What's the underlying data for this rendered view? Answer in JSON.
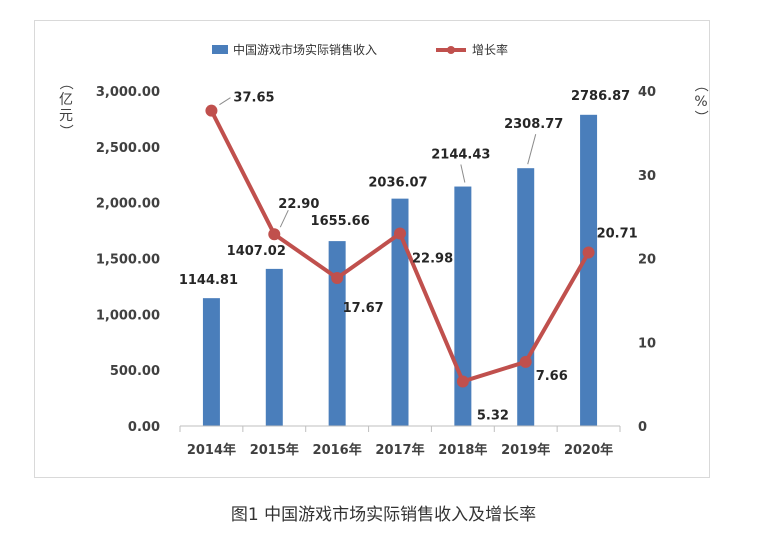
{
  "caption": "图1 中国游戏市场实际销售收入及增长率",
  "chart_data": {
    "type": "bar",
    "categories": [
      "2014年",
      "2015年",
      "2016年",
      "2017年",
      "2018年",
      "2019年",
      "2020年"
    ],
    "series": [
      {
        "name": "中国游戏市场实际销售收入",
        "type": "bar",
        "axis": "left",
        "values": [
          1144.81,
          1407.02,
          1655.66,
          2036.07,
          2144.43,
          2308.77,
          2786.87
        ],
        "labels": [
          "1144.81",
          "1407.02",
          "1655.66",
          "2036.07",
          "2144.43",
          "2308.77",
          "2786.87"
        ],
        "color": "#4a7ebb"
      },
      {
        "name": "增长率",
        "type": "line",
        "axis": "right",
        "values": [
          37.65,
          22.9,
          17.67,
          22.98,
          5.32,
          7.66,
          20.71
        ],
        "labels": [
          "37.65",
          "22.90",
          "17.67",
          "22.98",
          "5.32",
          "7.66",
          "20.71"
        ],
        "color": "#c0504d"
      }
    ],
    "y_left": {
      "label": "（亿元）",
      "ylim": [
        0,
        3000
      ],
      "ticks": [
        "0.00",
        "500.00",
        "1,000.00",
        "1,500.00",
        "2,000.00",
        "2,500.00",
        "3,000.00"
      ]
    },
    "y_right": {
      "label": "（%）",
      "ylim": [
        0,
        40
      ],
      "ticks": [
        "0",
        "10",
        "20",
        "30",
        "40"
      ]
    },
    "grid": false,
    "legend": "top"
  }
}
